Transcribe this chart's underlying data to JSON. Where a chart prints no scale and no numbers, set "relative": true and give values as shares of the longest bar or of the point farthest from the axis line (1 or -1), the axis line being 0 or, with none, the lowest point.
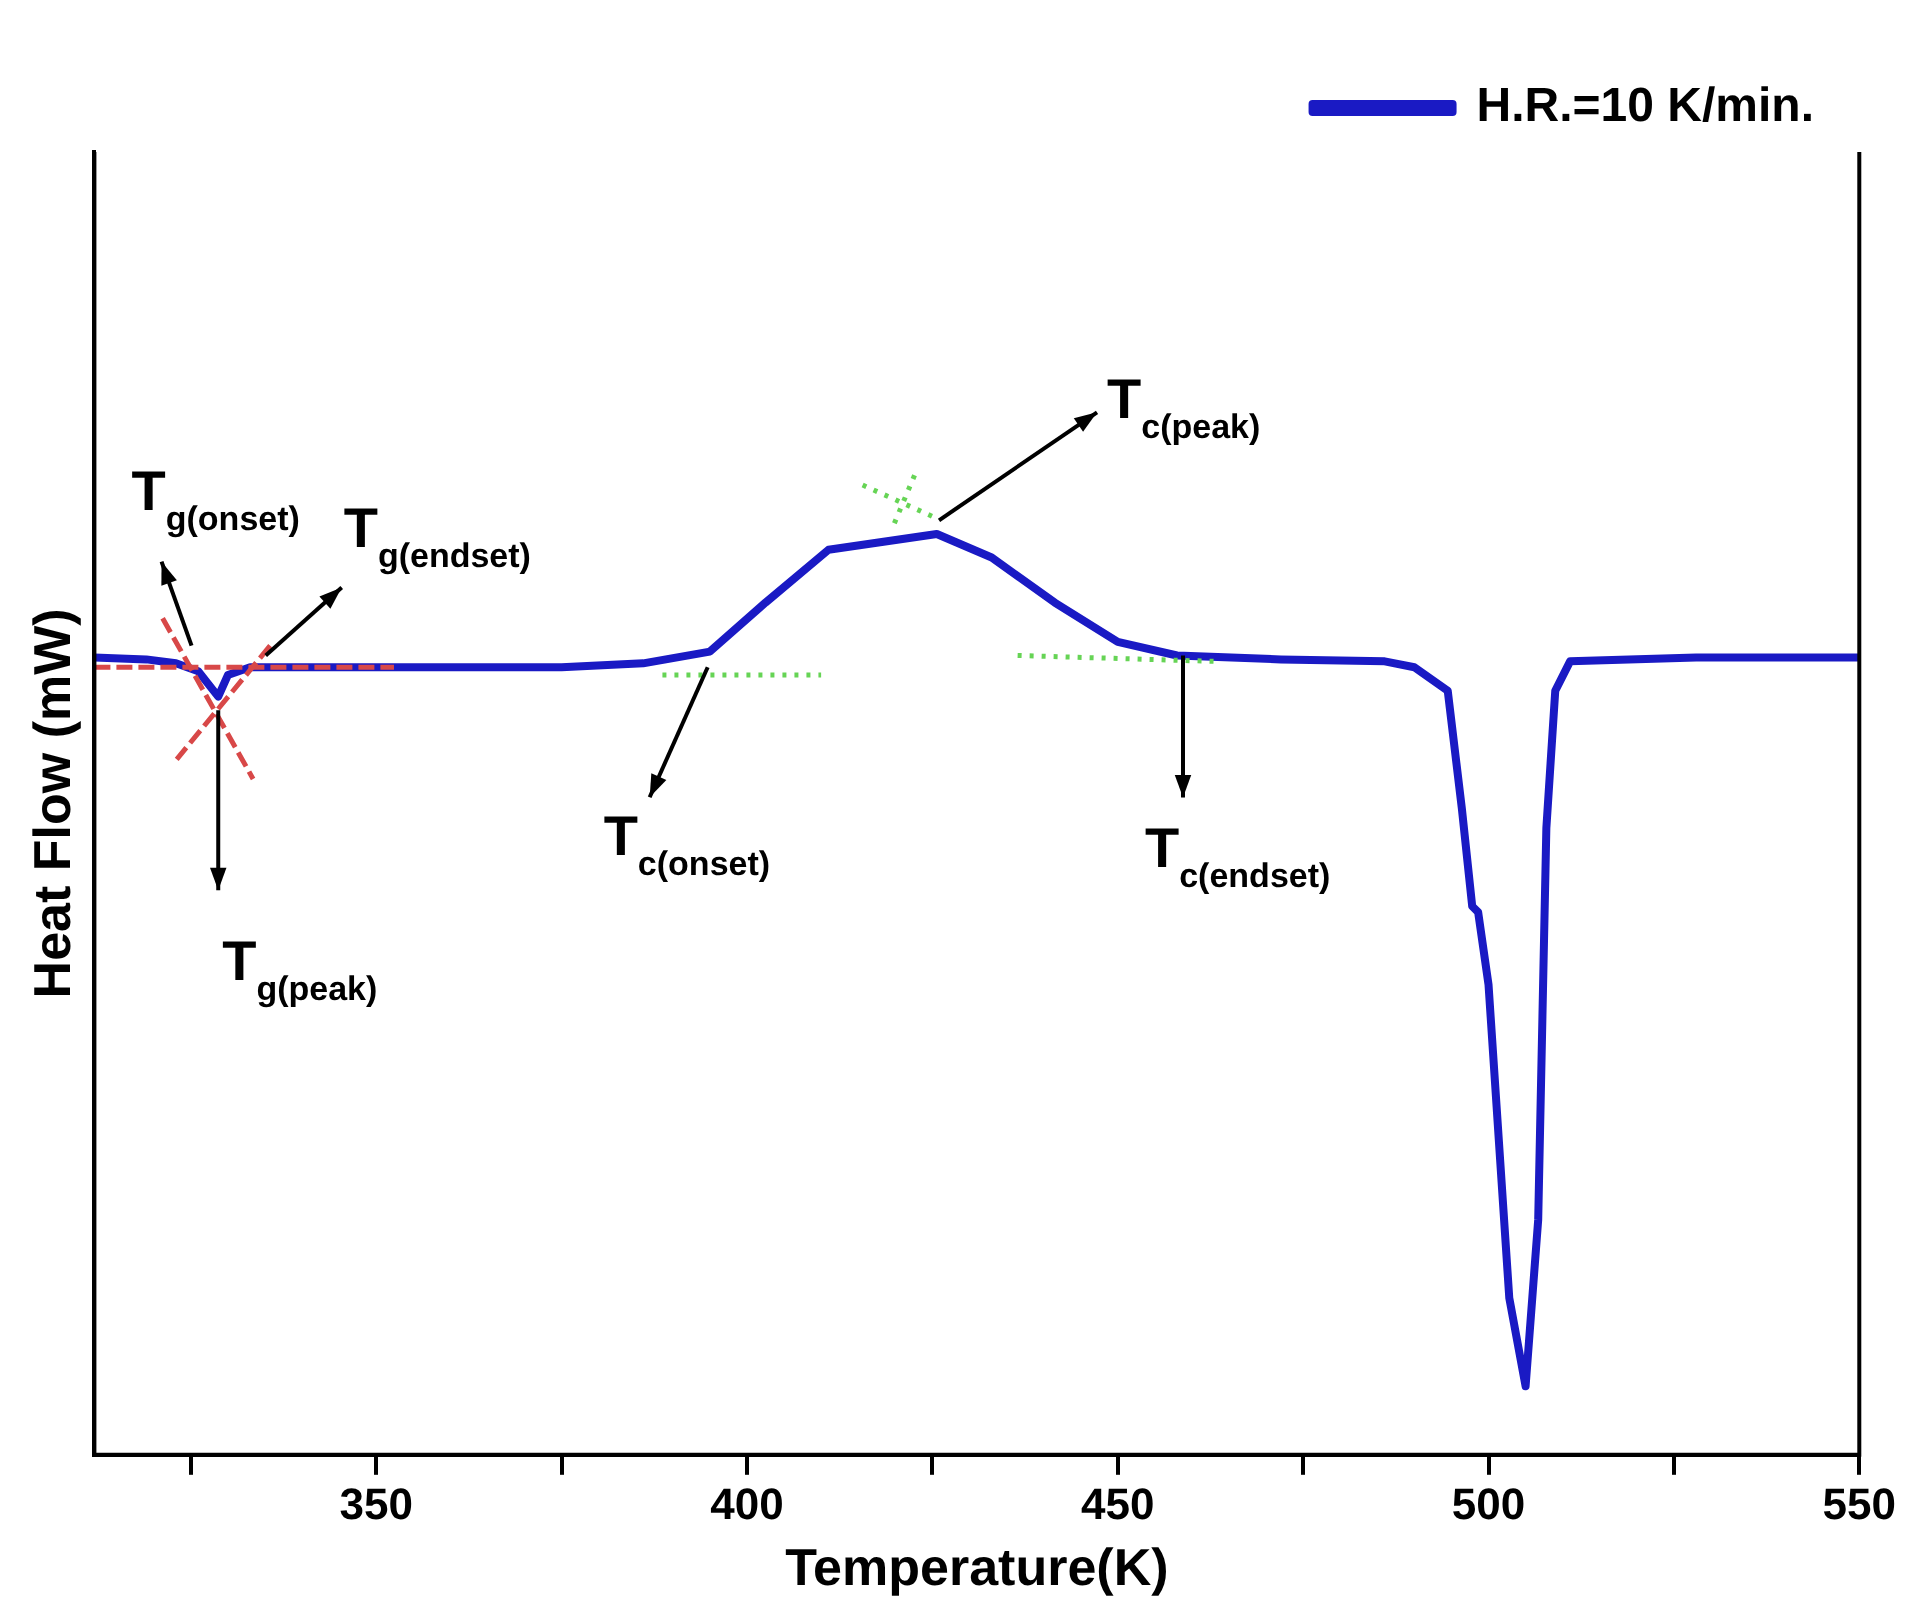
{
  "chart_data": {
    "type": "line",
    "relative": true,
    "xlabel": "Temperature(K)",
    "ylabel": "Heat Flow (mW)",
    "xlim": [
      312,
      550
    ],
    "xticks": [
      {
        "value": 325,
        "label": null
      },
      350,
      {
        "value": 375,
        "label": null
      },
      400,
      {
        "value": 425,
        "label": null
      },
      450,
      {
        "value": 475,
        "label": null
      },
      500,
      {
        "value": 525,
        "label": null
      },
      550
    ],
    "tick_labels": "x",
    "grid": false,
    "legend": "top right",
    "marker": "none",
    "series": [
      {
        "name": "H.R.=10 K/min.",
        "color": "#1a1ac4",
        "line_style": "solid",
        "x": [
          312,
          319,
          323,
          326,
          328.7,
          330,
          333,
          347,
          375,
          386,
          395,
          402.5,
          411,
          425.6,
          433,
          441.5,
          450,
          458,
          472,
          486,
          490,
          494.5,
          496.4,
          497.8,
          498.6,
          500,
          502.8,
          505,
          506.7,
          507.8,
          509,
          511,
          528,
          550
        ],
        "values": [
          0.814,
          0.812,
          0.808,
          0.8,
          0.774,
          0.796,
          0.804,
          0.804,
          0.804,
          0.808,
          0.82,
          0.87,
          0.924,
          0.94,
          0.916,
          0.87,
          0.83,
          0.816,
          0.812,
          0.81,
          0.804,
          0.78,
          0.66,
          0.56,
          0.554,
          0.48,
          0.16,
          0.07,
          0.24,
          0.64,
          0.78,
          0.81,
          0.814,
          0.814
        ]
      },
      {
        "type": "line",
        "color": "#d84848",
        "line_style": "dashed",
        "x": [
          321.2,
          333.4
        ],
        "values": [
          0.854,
          0.69
        ]
      },
      {
        "type": "line",
        "color": "#d84848",
        "line_style": "dashed",
        "x": [
          335.7,
          323.1
        ],
        "values": [
          0.826,
          0.71
        ]
      },
      {
        "type": "line",
        "color": "#d84848",
        "line_style": "dashed",
        "x": [
          312,
          352.4
        ],
        "values": [
          0.804,
          0.804
        ]
      },
      {
        "type": "line",
        "color": "#66d455",
        "line_style": "dotted",
        "x": [
          388.6,
          410
        ],
        "values": [
          0.796,
          0.796
        ]
      },
      {
        "type": "line",
        "color": "#66d455",
        "line_style": "dotted",
        "x": [
          415.6,
          425.6
        ],
        "values": [
          0.99,
          0.956
        ]
      },
      {
        "type": "line",
        "color": "#66d455",
        "line_style": "dotted",
        "x": [
          422.6,
          419.6
        ],
        "values": [
          1.0,
          0.946
        ]
      },
      {
        "type": "line",
        "color": "#66d455",
        "line_style": "dotted",
        "x": [
          436.5,
          463
        ],
        "values": [
          0.816,
          0.81
        ]
      }
    ],
    "annotations": [
      {
        "text": "T$_{g(onset)}$",
        "x": 325.1,
        "y": 0.826
      },
      {
        "text": "T$_{g(endset)}$",
        "x": 335.1,
        "y": 0.816
      },
      {
        "text": "T$_{g(peak)}$",
        "x": 328.7,
        "y": 0.76
      },
      {
        "text": "T$_{c(onset)}$",
        "x": 394.7,
        "y": 0.804
      },
      {
        "text": "T$_{c(peak)}$",
        "x": 425.9,
        "y": 0.954
      },
      {
        "text": "T$_{c(endset)}$",
        "x": 458.8,
        "y": 0.816
      }
    ]
  }
}
